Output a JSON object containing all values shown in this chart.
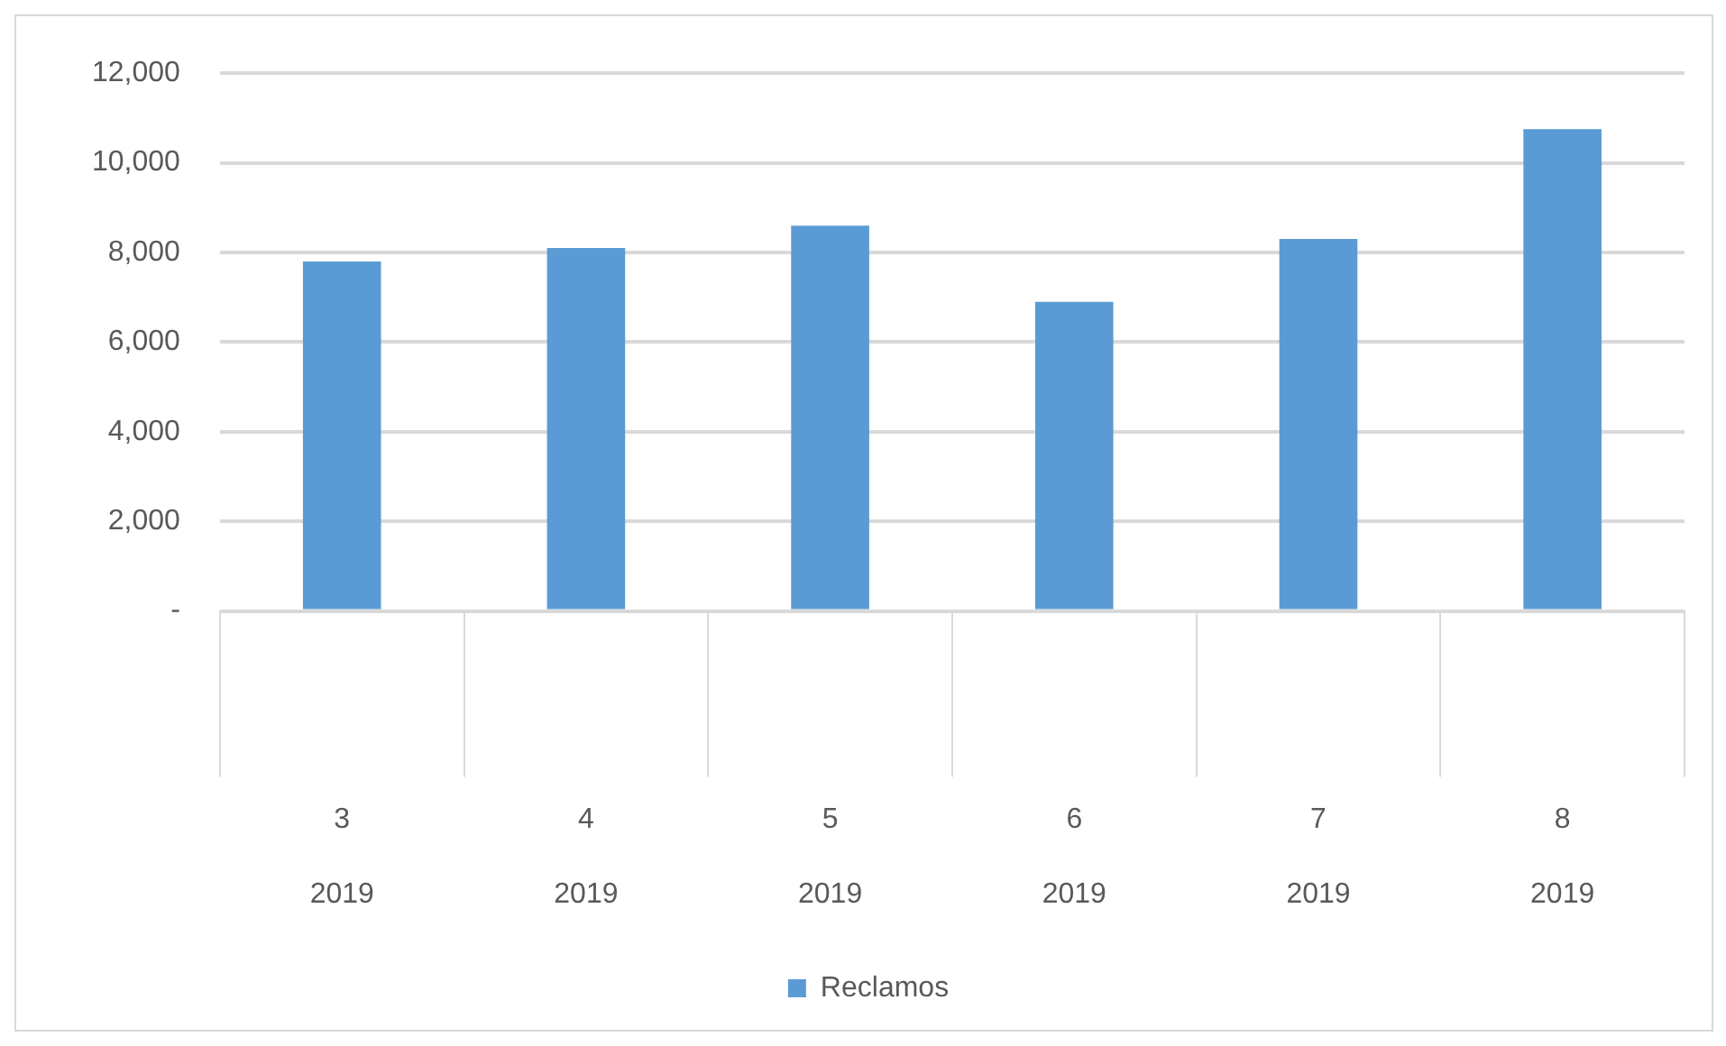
{
  "chart_data": {
    "type": "bar",
    "categories": [
      "3 2019",
      "4 2019",
      "5 2019",
      "6 2019",
      "7 2019",
      "8 2019"
    ],
    "series": [
      {
        "name": "Reclamos",
        "color": "#5b9bd5",
        "values": [
          7800,
          8100,
          8600,
          6900,
          8300,
          10750
        ]
      }
    ],
    "ylim": [
      0,
      12000
    ],
    "yticks": [
      {
        "value": 0,
        "label": "-"
      },
      {
        "value": 2000,
        "label": "2,000"
      },
      {
        "value": 4000,
        "label": "4,000"
      },
      {
        "value": 6000,
        "label": "6,000"
      },
      {
        "value": 8000,
        "label": "8,000"
      },
      {
        "value": 10000,
        "label": "10,000"
      },
      {
        "value": 12000,
        "label": "12,000"
      }
    ],
    "grid": "y",
    "legend": "bottom"
  }
}
